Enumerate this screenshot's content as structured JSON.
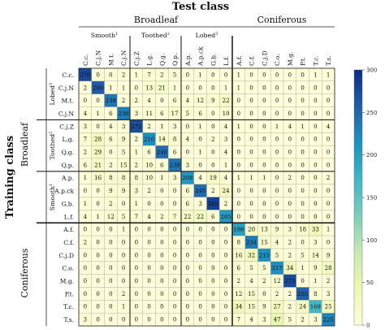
{
  "chart_data": {
    "type": "heatmap",
    "title": "Test class",
    "ylabel": "Training class",
    "groups": [
      "Broadleaf",
      "Coniferous"
    ],
    "subgroups_x": [
      "Smooth",
      "Toothed",
      "Lobed"
    ],
    "subgroups_x_sup": [
      "1",
      "2",
      "3"
    ],
    "subgroups_y": [
      "Lobed",
      "Toothed",
      "Smooth"
    ],
    "subgroups_y_sup": [
      "3",
      "2",
      "1"
    ],
    "categories": [
      "C.c.",
      "C.j.N",
      "M.t.",
      "C.j.N",
      "C.j.Z",
      "L.g.",
      "Q.g.",
      "Q.p.",
      "A.p.",
      "A.p.ck",
      "G.b.",
      "L.f.",
      "A.f.",
      "C.f.",
      "C.j.D",
      "C.o.",
      "M.g.",
      "P.t.",
      "T.c.",
      "T.s."
    ],
    "values": [
      [
        276,
        0,
        0,
        2,
        1,
        7,
        2,
        5,
        0,
        1,
        0,
        0,
        1,
        0,
        0,
        0,
        0,
        0,
        1,
        1
      ],
      [
        2,
        260,
        1,
        1,
        0,
        13,
        21,
        1,
        0,
        0,
        0,
        1,
        1,
        0,
        0,
        0,
        0,
        0,
        0,
        0
      ],
      [
        0,
        0,
        238,
        2,
        2,
        4,
        0,
        6,
        4,
        12,
        9,
        22,
        0,
        0,
        0,
        0,
        0,
        0,
        0,
        0
      ],
      [
        4,
        1,
        6,
        230,
        3,
        11,
        6,
        17,
        5,
        6,
        0,
        10,
        0,
        0,
        0,
        0,
        0,
        0,
        0,
        0
      ],
      [
        3,
        0,
        4,
        3,
        272,
        2,
        1,
        3,
        0,
        1,
        0,
        4,
        1,
        0,
        0,
        1,
        4,
        1,
        0,
        4
      ],
      [
        7,
        28,
        6,
        9,
        2,
        216,
        14,
        8,
        4,
        0,
        2,
        3,
        0,
        0,
        0,
        0,
        0,
        0,
        0,
        0
      ],
      [
        2,
        29,
        0,
        5,
        1,
        6,
        246,
        6,
        0,
        1,
        0,
        4,
        0,
        0,
        0,
        0,
        0,
        0,
        0,
        0
      ],
      [
        6,
        21,
        2,
        15,
        2,
        10,
        6,
        239,
        3,
        0,
        0,
        1,
        0,
        0,
        0,
        0,
        0,
        0,
        0,
        0
      ],
      [
        1,
        16,
        8,
        8,
        8,
        10,
        1,
        3,
        208,
        4,
        19,
        4,
        1,
        1,
        1,
        0,
        2,
        0,
        0,
        2
      ],
      [
        0,
        0,
        9,
        9,
        3,
        2,
        0,
        0,
        6,
        245,
        2,
        24,
        0,
        0,
        0,
        0,
        0,
        0,
        0,
        0
      ],
      [
        1,
        0,
        2,
        0,
        1,
        0,
        0,
        0,
        6,
        3,
        282,
        2,
        0,
        0,
        0,
        0,
        0,
        0,
        0,
        0
      ],
      [
        4,
        1,
        12,
        5,
        7,
        4,
        2,
        7,
        22,
        22,
        6,
        205,
        0,
        0,
        0,
        0,
        0,
        0,
        0,
        0
      ],
      [
        0,
        0,
        0,
        1,
        0,
        0,
        0,
        0,
        0,
        0,
        0,
        0,
        198,
        20,
        13,
        9,
        3,
        18,
        33,
        1
      ],
      [
        2,
        0,
        0,
        0,
        0,
        0,
        0,
        0,
        0,
        0,
        0,
        0,
        8,
        234,
        15,
        4,
        2,
        0,
        3,
        0
      ],
      [
        0,
        0,
        0,
        0,
        0,
        0,
        0,
        0,
        0,
        0,
        0,
        0,
        16,
        32,
        215,
        5,
        2,
        5,
        14,
        9
      ],
      [
        0,
        0,
        0,
        0,
        0,
        0,
        0,
        0,
        0,
        0,
        0,
        0,
        6,
        5,
        5,
        217,
        34,
        1,
        9,
        28
      ],
      [
        0,
        0,
        0,
        0,
        0,
        0,
        0,
        0,
        0,
        0,
        0,
        0,
        2,
        4,
        2,
        12,
        273,
        0,
        1,
        2
      ],
      [
        0,
        0,
        0,
        2,
        0,
        0,
        0,
        0,
        0,
        0,
        0,
        0,
        12,
        15,
        0,
        2,
        2,
        255,
        8,
        3
      ],
      [
        0,
        0,
        0,
        1,
        0,
        0,
        0,
        0,
        0,
        0,
        0,
        0,
        34,
        15,
        9,
        27,
        2,
        24,
        169,
        25
      ],
      [
        3,
        0,
        0,
        0,
        0,
        0,
        0,
        0,
        0,
        0,
        0,
        0,
        7,
        4,
        3,
        47,
        5,
        2,
        3,
        225
      ]
    ],
    "colorbar": {
      "min": 0,
      "max": 300,
      "ticks": [
        0,
        50,
        100,
        150,
        200,
        250,
        300
      ]
    },
    "colors": {
      "low": "#ffffd9",
      "mid1": "#edf8b1",
      "mid2": "#c7e9b4",
      "mid3": "#7fcdbb",
      "mid4": "#41b6c4",
      "mid5": "#1d91c0",
      "mid6": "#225ea8",
      "high": "#0c2c84",
      "grid": "#9a9a9a",
      "divider": "#222222"
    }
  }
}
